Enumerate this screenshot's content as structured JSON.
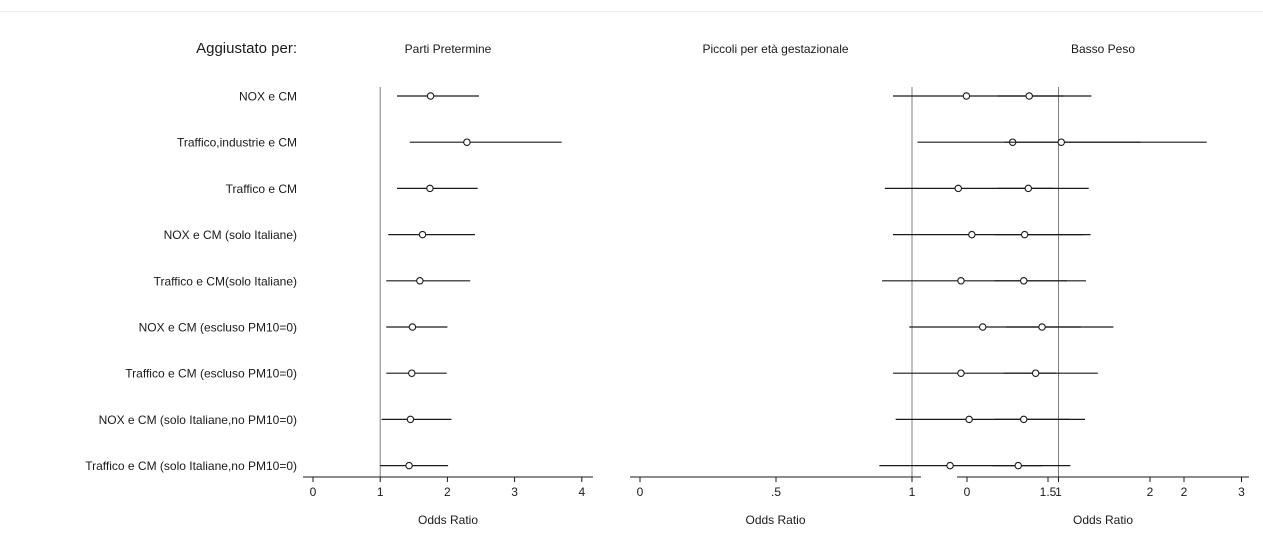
{
  "header": {
    "row_label_title": "Aggiustato per:"
  },
  "rows": [
    "NOX e CM",
    "Traffico,industrie e CM",
    "Traffico e CM",
    "NOX e CM (solo Italiane)",
    "Traffico e CM(solo Italiane)",
    "NOX e CM (escluso PM10=0)",
    "Traffico e CM (escluso PM10=0)",
    "NOX e CM (solo Italiane,no PM10=0)",
    "Traffico e CM (solo Italiane,no PM10=0)"
  ],
  "colors": {
    "ink": "#1a1a1a",
    "reference_line": "#7f7f7f",
    "marker_fill": "#ffffff"
  },
  "chart_data": [
    {
      "type": "forest",
      "title": "Parti Pretermine",
      "xlabel": "Odds Ratio",
      "xlim": [
        0,
        4.1
      ],
      "xticks": [
        0,
        1,
        2,
        3,
        4
      ],
      "xtick_labels": [
        "0",
        "1",
        "2",
        "3",
        "4"
      ],
      "reference": 1,
      "points": [
        {
          "or": 1.75,
          "lo": 1.25,
          "hi": 2.47
        },
        {
          "or": 2.29,
          "lo": 1.44,
          "hi": 3.7
        },
        {
          "or": 1.74,
          "lo": 1.25,
          "hi": 2.45
        },
        {
          "or": 1.63,
          "lo": 1.12,
          "hi": 2.41
        },
        {
          "or": 1.59,
          "lo": 1.09,
          "hi": 2.34
        },
        {
          "or": 1.48,
          "lo": 1.09,
          "hi": 2.0
        },
        {
          "or": 1.47,
          "lo": 1.09,
          "hi": 1.99
        },
        {
          "or": 1.45,
          "lo": 1.02,
          "hi": 2.06
        },
        {
          "or": 1.43,
          "lo": 1.0,
          "hi": 2.01
        }
      ]
    },
    {
      "type": "forest",
      "title": "Piccoli per età gestazionale",
      "xlabel": "Odds Ratio",
      "xlim": [
        0,
        2.05
      ],
      "xticks": [
        0,
        0.5,
        1,
        1.5,
        2
      ],
      "xtick_labels": [
        "0",
        ".5",
        "1",
        "1.5",
        "2"
      ],
      "reference": 1,
      "points": [
        {
          "or": 1.2,
          "lo": 0.93,
          "hi": 1.56
        },
        {
          "or": 1.37,
          "lo": 1.02,
          "hi": 1.84
        },
        {
          "or": 1.17,
          "lo": 0.9,
          "hi": 1.52
        },
        {
          "or": 1.22,
          "lo": 0.93,
          "hi": 1.63
        },
        {
          "or": 1.18,
          "lo": 0.89,
          "hi": 1.57
        },
        {
          "or": 1.26,
          "lo": 0.99,
          "hi": 1.62
        },
        {
          "or": 1.18,
          "lo": 0.93,
          "hi": 1.53
        },
        {
          "or": 1.21,
          "lo": 0.94,
          "hi": 1.58
        },
        {
          "or": 1.14,
          "lo": 0.88,
          "hi": 1.48
        }
      ]
    },
    {
      "type": "forest",
      "title": "Basso Peso",
      "xlabel": "Odds Ratio",
      "xlim": [
        0,
        3.08
      ],
      "xticks": [
        0,
        1,
        2,
        3
      ],
      "xtick_labels": [
        "0",
        "1",
        "2",
        "3"
      ],
      "reference": 1,
      "points": [
        {
          "or": 0.68,
          "lo": 0.34,
          "hi": 1.36
        },
        {
          "or": 1.03,
          "lo": 0.41,
          "hi": 2.62
        },
        {
          "or": 0.67,
          "lo": 0.34,
          "hi": 1.33
        },
        {
          "or": 0.63,
          "lo": 0.3,
          "hi": 1.35
        },
        {
          "or": 0.62,
          "lo": 0.3,
          "hi": 1.3
        },
        {
          "or": 0.82,
          "lo": 0.43,
          "hi": 1.6
        },
        {
          "or": 0.75,
          "lo": 0.4,
          "hi": 1.43
        },
        {
          "or": 0.62,
          "lo": 0.3,
          "hi": 1.29
        },
        {
          "or": 0.56,
          "lo": 0.28,
          "hi": 1.13
        }
      ]
    }
  ]
}
